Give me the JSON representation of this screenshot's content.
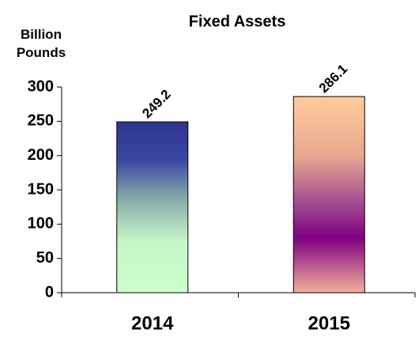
{
  "chart_data": {
    "type": "bar",
    "title": "Fixed Assets",
    "ylabel": "Billion Pounds",
    "categories": [
      "2014",
      "2015"
    ],
    "values": [
      249.2,
      286.1
    ],
    "ylim": [
      0,
      300
    ],
    "yticks": [
      0,
      50,
      100,
      150,
      200,
      250,
      300
    ]
  }
}
